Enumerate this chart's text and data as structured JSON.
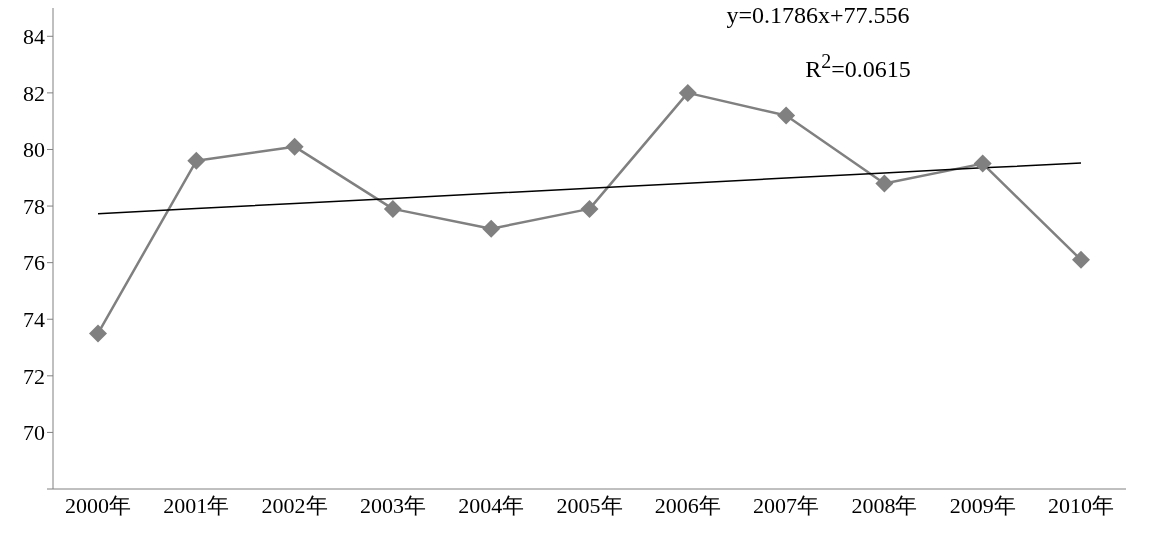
{
  "chart_data": {
    "type": "line",
    "categories": [
      "2000年",
      "2001年",
      "2002年",
      "2003年",
      "2004年",
      "2005年",
      "2006年",
      "2007年",
      "2008年",
      "2009年",
      "2010年"
    ],
    "series": [
      {
        "color": "#808080",
        "values": [
          73.5,
          79.6,
          80.1,
          77.9,
          77.2,
          77.9,
          82.0,
          81.2,
          78.8,
          79.5,
          76.1
        ],
        "marker": "diamond"
      },
      {
        "color": "#000000",
        "values": [
          77.73,
          77.91,
          78.09,
          78.27,
          78.45,
          78.63,
          78.81,
          78.99,
          79.17,
          79.35,
          79.52
        ],
        "marker": "none"
      }
    ],
    "ylim": [
      68,
      85
    ],
    "yticks": [
      {
        "value": 68,
        "label": null
      },
      70,
      72,
      74,
      76,
      78,
      80,
      82,
      84
    ],
    "annotations": [
      "y=0.1786x+77.556",
      "R$^{2}$=0.0615"
    ],
    "grid": false,
    "legend": false,
    "line_style": "solid"
  }
}
